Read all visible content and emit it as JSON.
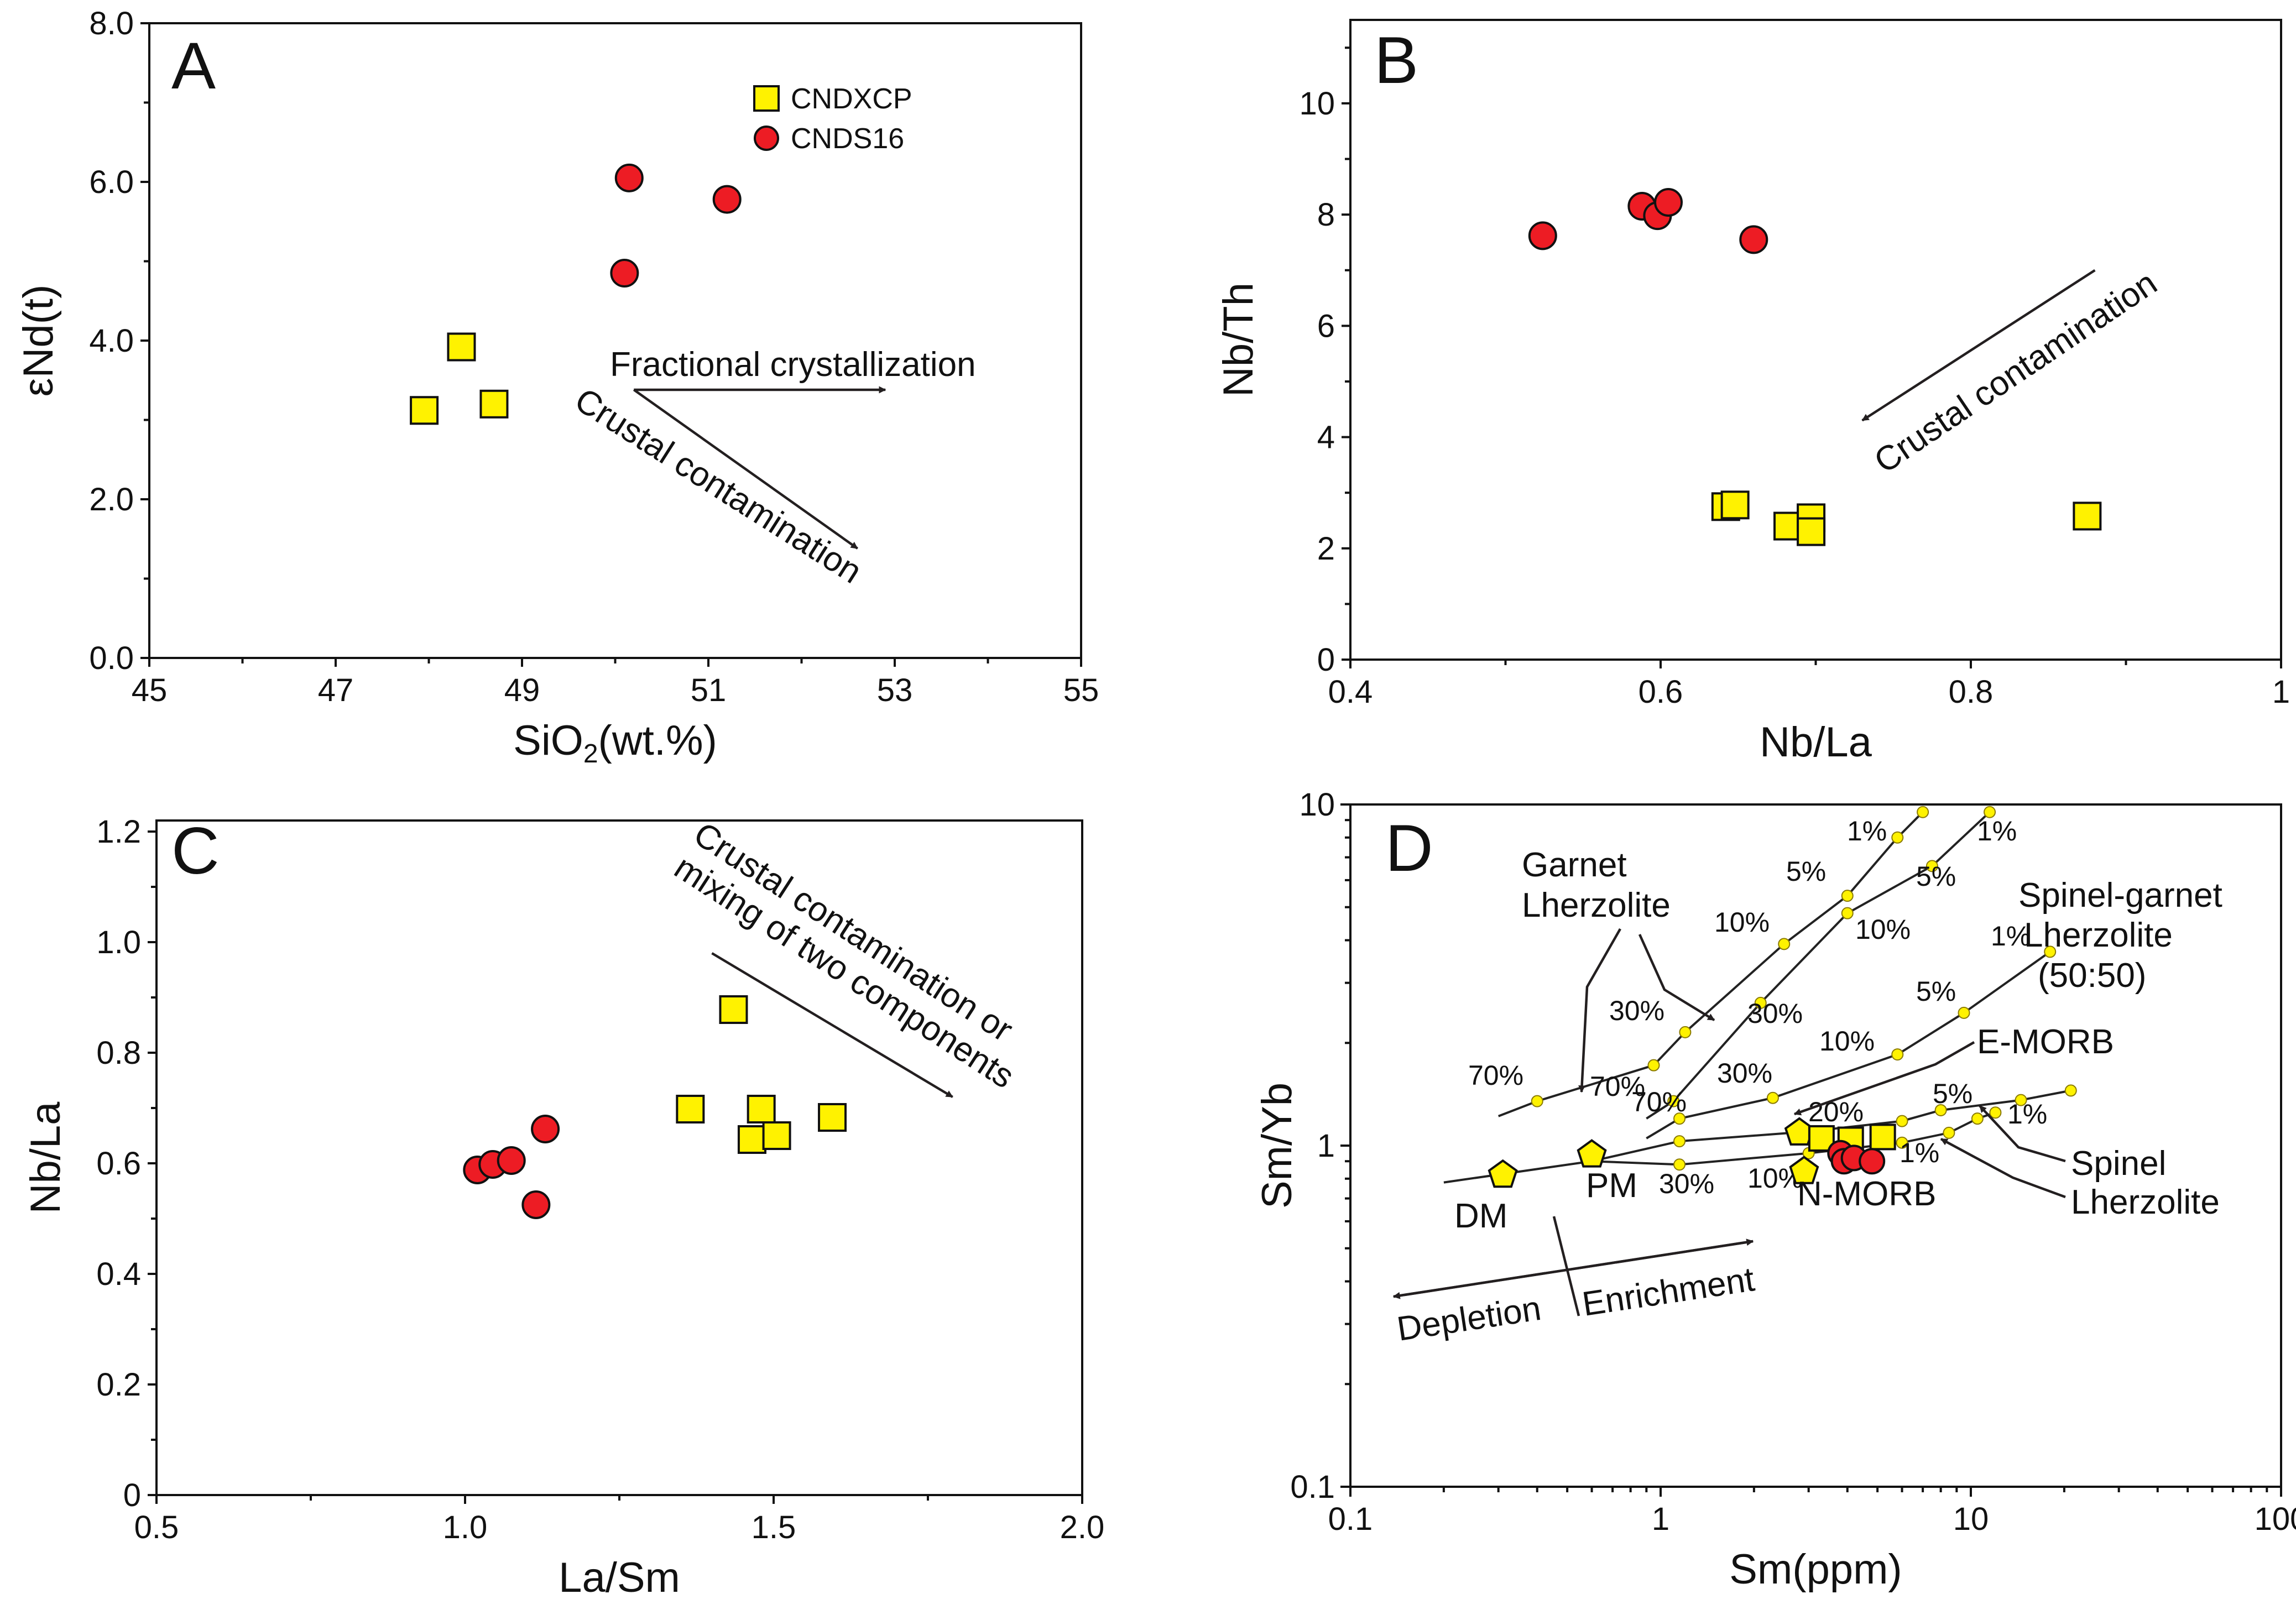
{
  "chart_data": [
    {
      "panel": "A",
      "type": "scatter",
      "xlabel": "SiO2(wt.%)",
      "ylabel": "εNd(t)",
      "xlim": [
        45,
        55
      ],
      "ylim": [
        0,
        8
      ],
      "x_ticks": [
        "45",
        "47",
        "49",
        "51",
        "53",
        "55"
      ],
      "y_ticks": [
        "0.0",
        "2.0",
        "4.0",
        "6.0",
        "8.0"
      ],
      "legend": {
        "position": "top-right",
        "entries": [
          {
            "name": "CNDXCP",
            "marker": "square",
            "color": "#fff200"
          },
          {
            "name": "CNDS16",
            "marker": "circle",
            "color": "#ed1c24"
          }
        ]
      },
      "series": [
        {
          "name": "CNDXCP",
          "marker": "square",
          "points": [
            [
              47.95,
              3.12
            ],
            [
              48.35,
              3.92
            ],
            [
              48.7,
              3.2
            ]
          ]
        },
        {
          "name": "CNDS16",
          "marker": "circle",
          "points": [
            [
              50.1,
              4.85
            ],
            [
              50.15,
              6.05
            ],
            [
              51.2,
              5.78
            ]
          ]
        }
      ],
      "annotations": [
        {
          "text": "Fractional crystallization",
          "from": [
            50.2,
            3.38
          ],
          "to": [
            52.9,
            3.38
          ]
        },
        {
          "text": "Crustal contamination",
          "from": [
            50.2,
            3.38
          ],
          "to": [
            52.6,
            1.38
          ]
        }
      ]
    },
    {
      "panel": "B",
      "type": "scatter",
      "xlabel": "Nb/La",
      "ylabel": "Nb/Th",
      "xlim": [
        0.4,
        1.0
      ],
      "ylim": [
        0,
        11.5
      ],
      "x_ticks": [
        "0.4",
        "0.6",
        "0.8",
        "1"
      ],
      "y_ticks": [
        "0",
        "2",
        "4",
        "6",
        "8",
        "10"
      ],
      "series": [
        {
          "name": "CNDXCP",
          "marker": "square",
          "points": [
            [
              0.642,
              2.75
            ],
            [
              0.648,
              2.78
            ],
            [
              0.682,
              2.4
            ],
            [
              0.697,
              2.55
            ],
            [
              0.697,
              2.3
            ],
            [
              0.875,
              2.58
            ]
          ]
        },
        {
          "name": "CNDS16",
          "marker": "circle",
          "points": [
            [
              0.524,
              7.62
            ],
            [
              0.588,
              8.15
            ],
            [
              0.598,
              7.98
            ],
            [
              0.605,
              8.22
            ],
            [
              0.66,
              7.55
            ]
          ]
        }
      ],
      "annotations": [
        {
          "text": "Crustal contamination",
          "from": [
            0.88,
            7.0
          ],
          "to": [
            0.73,
            4.3
          ]
        }
      ]
    },
    {
      "panel": "C",
      "type": "scatter",
      "xlabel": "La/Sm",
      "ylabel": "Nb/La",
      "xlim": [
        0.5,
        2.0
      ],
      "ylim": [
        0,
        1.22
      ],
      "x_ticks": [
        "0.5",
        "1.0",
        "1.5",
        "2.0"
      ],
      "y_ticks": [
        "0",
        "0.2",
        "0.4",
        "0.6",
        "0.8",
        "1.0",
        "1.2"
      ],
      "series": [
        {
          "name": "CNDXCP",
          "marker": "square",
          "points": [
            [
              1.365,
              0.698
            ],
            [
              1.435,
              0.878
            ],
            [
              1.465,
              0.643
            ],
            [
              1.48,
              0.698
            ],
            [
              1.505,
              0.65
            ],
            [
              1.595,
              0.683
            ]
          ]
        },
        {
          "name": "CNDS16",
          "marker": "circle",
          "points": [
            [
              1.02,
              0.588
            ],
            [
              1.045,
              0.598
            ],
            [
              1.075,
              0.605
            ],
            [
              1.115,
              0.525
            ],
            [
              1.13,
              0.662
            ]
          ]
        }
      ],
      "annotations": [
        {
          "text": "Crustal contamination or",
          "from": [
            1.4,
            0.98
          ],
          "to": [
            1.79,
            0.72
          ]
        },
        {
          "text": "mixing of two components"
        }
      ]
    },
    {
      "panel": "D",
      "type": "line",
      "xlabel": "Sm(ppm)",
      "ylabel": "Sm/Yb",
      "xscale": "log",
      "yscale": "log",
      "xlim": [
        0.1,
        100
      ],
      "ylim": [
        0.1,
        10
      ],
      "x_ticks": [
        "0.1",
        "1",
        "10",
        "100"
      ],
      "y_ticks": [
        "0.1",
        "1",
        "10"
      ],
      "melting_curves": [
        {
          "name": "Garnet Lherzolite (a)",
          "points": [
            [
              0.3,
              1.22
            ],
            [
              0.4,
              1.35
            ],
            [
              0.95,
              1.72
            ],
            [
              1.2,
              2.15
            ],
            [
              2.5,
              3.9
            ],
            [
              4.0,
              5.4
            ],
            [
              5.8,
              8.0
            ],
            [
              7.0,
              9.5
            ]
          ],
          "labels": [
            "70%",
            "30%",
            "10%",
            "5%",
            "1%"
          ]
        },
        {
          "name": "Garnet Lherzolite (b)",
          "points": [
            [
              0.9,
              1.2
            ],
            [
              1.1,
              1.35
            ],
            [
              2.1,
              2.62
            ],
            [
              4.0,
              4.8
            ],
            [
              7.5,
              6.6
            ],
            [
              11.5,
              9.5
            ]
          ],
          "labels": [
            "70%",
            "30%",
            "10%",
            "5%",
            "1%"
          ]
        },
        {
          "name": "Spinel-garnet Lherzolite (50:50)",
          "points": [
            [
              0.9,
              1.05
            ],
            [
              1.15,
              1.2
            ],
            [
              2.3,
              1.38
            ],
            [
              5.8,
              1.85
            ],
            [
              9.5,
              2.45
            ],
            [
              18,
              3.7
            ]
          ],
          "labels": [
            "70%",
            "30%",
            "10%",
            "5%",
            "1%"
          ]
        },
        {
          "name": "Spinel Lherzolite (a)",
          "points": [
            [
              0.2,
              0.78
            ],
            [
              0.6,
              0.9
            ],
            [
              1.15,
              1.03
            ],
            [
              3.0,
              1.1
            ],
            [
              6.0,
              1.18
            ],
            [
              8.0,
              1.27
            ],
            [
              14.5,
              1.36
            ],
            [
              21,
              1.45
            ]
          ]
        },
        {
          "name": "Spinel Lherzolite (b)",
          "points": [
            [
              0.6,
              0.9
            ],
            [
              1.15,
              0.88
            ],
            [
              3.0,
              0.95
            ],
            [
              6.0,
              1.02
            ],
            [
              8.5,
              1.09
            ],
            [
              10.5,
              1.2
            ],
            [
              12,
              1.25
            ]
          ]
        }
      ],
      "reference_points": [
        {
          "name": "DM",
          "x": 0.31,
          "y": 0.82
        },
        {
          "name": "PM",
          "x": 0.6,
          "y": 0.94
        },
        {
          "name": "E-MORB",
          "x": 2.8,
          "y": 1.09
        },
        {
          "name": "N-MORB",
          "x": 2.9,
          "y": 0.84
        }
      ],
      "series": [
        {
          "name": "CNDXCP",
          "marker": "square",
          "points": [
            [
              3.3,
              1.05
            ],
            [
              4.1,
              1.04
            ],
            [
              5.2,
              1.06
            ]
          ]
        },
        {
          "name": "CNDS16",
          "marker": "circle",
          "points": [
            [
              3.8,
              0.95
            ],
            [
              3.9,
              0.9
            ],
            [
              4.2,
              0.92
            ],
            [
              4.8,
              0.9
            ]
          ]
        }
      ],
      "annotations": [
        {
          "text": "Depletion"
        },
        {
          "text": "Enrichment"
        },
        {
          "text": "Garnet Lherzolite"
        },
        {
          "text": "Spinel-garnet Lherzolite (50:50)"
        },
        {
          "text": "Spinel Lherzolite"
        },
        {
          "text": "E-MORB"
        },
        {
          "text": "N-MORB"
        },
        {
          "text": "DM"
        },
        {
          "text": "PM"
        }
      ]
    }
  ]
}
